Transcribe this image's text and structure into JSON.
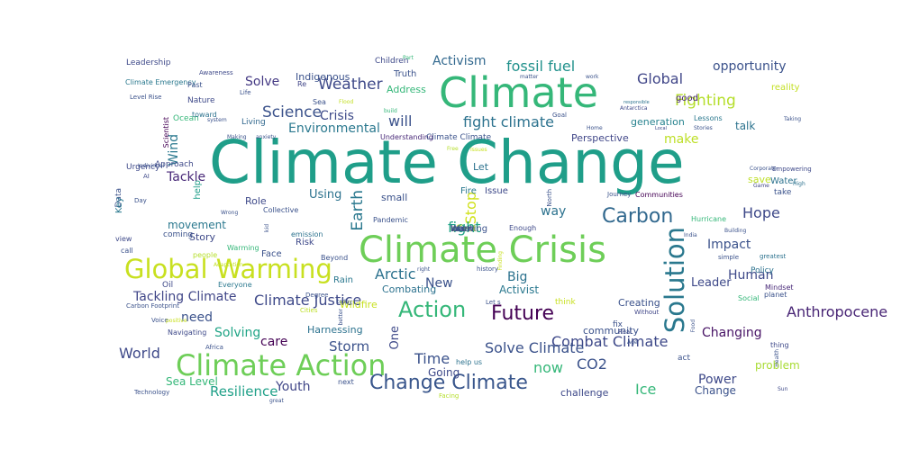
{
  "wordcloud": {
    "words": [
      {
        "text": "Climate Change",
        "color": "#1f9e89",
        "vertical": false
      },
      {
        "text": "Climate Crisis",
        "color": "#6ece58",
        "vertical": false
      },
      {
        "text": "Climate",
        "color": "#35b779",
        "vertical": false
      },
      {
        "text": "Global Warming",
        "color": "#c8e020",
        "vertical": false
      },
      {
        "text": "Climate Action",
        "color": "#6ece58",
        "vertical": false
      },
      {
        "text": "Change Climate",
        "color": "#39568c",
        "vertical": false
      },
      {
        "text": "Solution",
        "color": "#2a788e",
        "vertical": true
      },
      {
        "text": "Carbon",
        "color": "#31688e",
        "vertical": false
      },
      {
        "text": "Action",
        "color": "#35b779",
        "vertical": false
      },
      {
        "text": "Future",
        "color": "#440154",
        "vertical": false
      },
      {
        "text": "Weather",
        "color": "#3e4989",
        "vertical": false
      },
      {
        "text": "Fighting",
        "color": "#b5de2b",
        "vertical": false
      },
      {
        "text": "Science",
        "color": "#3b528b",
        "vertical": false
      },
      {
        "text": "fight climate",
        "color": "#2c728e",
        "vertical": false
      },
      {
        "text": "Global",
        "color": "#404688",
        "vertical": false
      },
      {
        "text": "fossil fuel",
        "color": "#21918c",
        "vertical": false
      },
      {
        "text": "Activism",
        "color": "#31688e",
        "vertical": false
      },
      {
        "text": "will",
        "color": "#3b528b",
        "vertical": false
      },
      {
        "text": "Environmental",
        "color": "#2a788e",
        "vertical": false
      },
      {
        "text": "Crisis",
        "color": "#3e4a89",
        "vertical": false
      },
      {
        "text": "Solve",
        "color": "#443983",
        "vertical": false
      },
      {
        "text": "opportunity",
        "color": "#3b528b",
        "vertical": false
      },
      {
        "text": "reality",
        "color": "#c2df23",
        "vertical": false
      },
      {
        "text": "good",
        "color": "#482475",
        "vertical": false
      },
      {
        "text": "talk",
        "color": "#2c728e",
        "vertical": false
      },
      {
        "text": "make",
        "color": "#bddf26",
        "vertical": false
      },
      {
        "text": "Perspective",
        "color": "#404688",
        "vertical": false
      },
      {
        "text": "generation",
        "color": "#26828e",
        "vertical": false
      },
      {
        "text": "Wind",
        "color": "#2a788e",
        "vertical": true
      },
      {
        "text": "Tackle",
        "color": "#482878",
        "vertical": false
      },
      {
        "text": "help",
        "color": "#1f9e89",
        "vertical": true
      },
      {
        "text": "Earth",
        "color": "#2a788e",
        "vertical": true
      },
      {
        "text": "Stop",
        "color": "#d0e11c",
        "vertical": true
      },
      {
        "text": "way",
        "color": "#2c728e",
        "vertical": false
      },
      {
        "text": "Hope",
        "color": "#3e4989",
        "vertical": false
      },
      {
        "text": "fight",
        "color": "#20a486",
        "vertical": false
      },
      {
        "text": "Impact",
        "color": "#3b528b",
        "vertical": false
      },
      {
        "text": "Human",
        "color": "#3e4989",
        "vertical": false
      },
      {
        "text": "Leader",
        "color": "#3e4989",
        "vertical": false
      },
      {
        "text": "Big",
        "color": "#2c728e",
        "vertical": false
      },
      {
        "text": "Arctic",
        "color": "#2c728e",
        "vertical": false
      },
      {
        "text": "New",
        "color": "#3b528b",
        "vertical": false
      },
      {
        "text": "Activist",
        "color": "#2a788e",
        "vertical": false
      },
      {
        "text": "Tackling Climate",
        "color": "#404688",
        "vertical": false
      },
      {
        "text": "Climate Justice",
        "color": "#3e4989",
        "vertical": false
      },
      {
        "text": "need",
        "color": "#3b528b",
        "vertical": false
      },
      {
        "text": "Anthropocene",
        "color": "#482575",
        "vertical": false
      },
      {
        "text": "One",
        "color": "#3e4989",
        "vertical": true
      },
      {
        "text": "Combat Climate",
        "color": "#3e4989",
        "vertical": false
      },
      {
        "text": "Changing",
        "color": "#471365",
        "vertical": false
      },
      {
        "text": "Solving",
        "color": "#20a486",
        "vertical": false
      },
      {
        "text": "care",
        "color": "#440154",
        "vertical": false
      },
      {
        "text": "Storm",
        "color": "#3b528b",
        "vertical": false
      },
      {
        "text": "Solve Climate",
        "color": "#3b528b",
        "vertical": false
      },
      {
        "text": "World",
        "color": "#3e4989",
        "vertical": false
      },
      {
        "text": "Time",
        "color": "#3b528b",
        "vertical": false
      },
      {
        "text": "CO2",
        "color": "#3b528b",
        "vertical": false
      },
      {
        "text": "now",
        "color": "#35b779",
        "vertical": false
      },
      {
        "text": "Ice",
        "color": "#35b779",
        "vertical": false
      },
      {
        "text": "Power",
        "color": "#3e4989",
        "vertical": false
      },
      {
        "text": "Resilience",
        "color": "#1fa088",
        "vertical": false
      },
      {
        "text": "Youth",
        "color": "#404688",
        "vertical": false
      },
      {
        "text": "problem",
        "color": "#a8db34",
        "vertical": false
      },
      {
        "text": "Change",
        "color": "#3b528b",
        "vertical": false
      },
      {
        "text": "challenge",
        "color": "#3e4989",
        "vertical": false
      },
      {
        "text": "Sea Level",
        "color": "#35b779",
        "vertical": false
      },
      {
        "text": "Going",
        "color": "#3e4989",
        "vertical": false
      },
      {
        "text": "Using",
        "color": "#2c728e",
        "vertical": false
      },
      {
        "text": "Role",
        "color": "#3e4989",
        "vertical": false
      },
      {
        "text": "movement",
        "color": "#2a788e",
        "vertical": false
      },
      {
        "text": "Story",
        "color": "#3e4989",
        "vertical": false
      },
      {
        "text": "small",
        "color": "#3b528b",
        "vertical": false
      },
      {
        "text": "save",
        "color": "#bddf26",
        "vertical": false
      },
      {
        "text": "Water",
        "color": "#2c728e",
        "vertical": false
      },
      {
        "text": "take",
        "color": "#3b528b",
        "vertical": false
      },
      {
        "text": "Issue",
        "color": "#3e4989",
        "vertical": false
      },
      {
        "text": "Fire",
        "color": "#2a788e",
        "vertical": false
      },
      {
        "text": "Let",
        "color": "#2c728e",
        "vertical": false
      },
      {
        "text": "Indigenous",
        "color": "#3b528b",
        "vertical": false
      },
      {
        "text": "Address",
        "color": "#35b779",
        "vertical": false
      },
      {
        "text": "Truth",
        "color": "#3b528b",
        "vertical": false
      },
      {
        "text": "Children",
        "color": "#3e4989",
        "vertical": false
      },
      {
        "text": "Re",
        "color": "#404688",
        "vertical": false
      },
      {
        "text": "Sea",
        "color": "#3b528b",
        "vertical": false
      },
      {
        "text": "Flood",
        "color": "#c2df23",
        "vertical": false
      },
      {
        "text": "Leadership",
        "color": "#3e4989",
        "vertical": false
      },
      {
        "text": "Climate Emergency",
        "color": "#2a788e",
        "vertical": false
      },
      {
        "text": "Past",
        "color": "#3b528b",
        "vertical": false
      },
      {
        "text": "Nature",
        "color": "#3e4989",
        "vertical": false
      },
      {
        "text": "Ocean",
        "color": "#35b779",
        "vertical": false
      },
      {
        "text": "Living",
        "color": "#31688e",
        "vertical": false
      },
      {
        "text": "toward",
        "color": "#2c728e",
        "vertical": false
      },
      {
        "text": "Understanding",
        "color": "#482878",
        "vertical": false
      },
      {
        "text": "Climate Climate",
        "color": "#3b528b",
        "vertical": false
      },
      {
        "text": "Approach",
        "color": "#3e4989",
        "vertical": false
      },
      {
        "text": "Lessons",
        "color": "#2a788e",
        "vertical": false
      },
      {
        "text": "Stories",
        "color": "#3b528b",
        "vertical": false
      },
      {
        "text": "Empowering",
        "color": "#3e4989",
        "vertical": false
      },
      {
        "text": "Corporate",
        "color": "#3b528b",
        "vertical": false
      },
      {
        "text": "Game",
        "color": "#404688",
        "vertical": false
      },
      {
        "text": "work",
        "color": "#3b528b",
        "vertical": false
      },
      {
        "text": "Antarctica",
        "color": "#3e4989",
        "vertical": false
      },
      {
        "text": "Urgency",
        "color": "#3e4989",
        "vertical": false
      },
      {
        "text": "Scientist",
        "color": "#440154",
        "vertical": true
      },
      {
        "text": "Data",
        "color": "#3b528b",
        "vertical": true
      },
      {
        "text": "Key",
        "color": "#2a788e",
        "vertical": true
      },
      {
        "text": "Day",
        "color": "#3b528b",
        "vertical": false
      },
      {
        "text": "AI",
        "color": "#3e4989",
        "vertical": false
      },
      {
        "text": "Individual",
        "color": "#3b528b",
        "vertical": false
      },
      {
        "text": "view",
        "color": "#3e4989",
        "vertical": false
      },
      {
        "text": "call",
        "color": "#3b528b",
        "vertical": false
      },
      {
        "text": "coming",
        "color": "#3b528b",
        "vertical": false
      },
      {
        "text": "Warming",
        "color": "#35b779",
        "vertical": false
      },
      {
        "text": "Face",
        "color": "#3b528b",
        "vertical": false
      },
      {
        "text": "Risk",
        "color": "#3e4989",
        "vertical": false
      },
      {
        "text": "Beyond",
        "color": "#3b528b",
        "vertical": false
      },
      {
        "text": "people",
        "color": "#b5de2b",
        "vertical": false
      },
      {
        "text": "Oil",
        "color": "#3e4989",
        "vertical": false
      },
      {
        "text": "Everyone",
        "color": "#2a788e",
        "vertical": false
      },
      {
        "text": "Combating",
        "color": "#2c728e",
        "vertical": false
      },
      {
        "text": "Rain",
        "color": "#2a788e",
        "vertical": false
      },
      {
        "text": "Wildfire",
        "color": "#c8e020",
        "vertical": false
      },
      {
        "text": "Degree",
        "color": "#3b528b",
        "vertical": false
      },
      {
        "text": "Cities",
        "color": "#bddf26",
        "vertical": false
      },
      {
        "text": "Let s",
        "color": "#3b528b",
        "vertical": false
      },
      {
        "text": "Carbon Footprint",
        "color": "#3b528b",
        "vertical": false
      },
      {
        "text": "Voice",
        "color": "#3b528b",
        "vertical": false
      },
      {
        "text": "Navigating",
        "color": "#3e4989",
        "vertical": false
      },
      {
        "text": "Africa",
        "color": "#3b528b",
        "vertical": false
      },
      {
        "text": "Harnessing",
        "color": "#2c728e",
        "vertical": false
      },
      {
        "text": "community",
        "color": "#3b528b",
        "vertical": false
      },
      {
        "text": "fix",
        "color": "#3b528b",
        "vertical": false
      },
      {
        "text": "Real",
        "color": "#3e4989",
        "vertical": false
      },
      {
        "text": "Creating",
        "color": "#3b528b",
        "vertical": false
      },
      {
        "text": "Without",
        "color": "#404688",
        "vertical": false
      },
      {
        "text": "act",
        "color": "#3b528b",
        "vertical": false
      },
      {
        "text": "Social",
        "color": "#35b779",
        "vertical": false
      },
      {
        "text": "planet",
        "color": "#3b528b",
        "vertical": false
      },
      {
        "text": "thing",
        "color": "#3e4989",
        "vertical": false
      },
      {
        "text": "Mindset",
        "color": "#482878",
        "vertical": false
      },
      {
        "text": "Policy",
        "color": "#2c728e",
        "vertical": false
      },
      {
        "text": "simple",
        "color": "#3b528b",
        "vertical": false
      },
      {
        "text": "greatest",
        "color": "#2c728e",
        "vertical": false
      },
      {
        "text": "Building",
        "color": "#3b528b",
        "vertical": false
      },
      {
        "text": "Hurricane",
        "color": "#35b779",
        "vertical": false
      },
      {
        "text": "Communities",
        "color": "#440154",
        "vertical": false
      },
      {
        "text": "Journey",
        "color": "#3b528b",
        "vertical": false
      },
      {
        "text": "Enough",
        "color": "#3e4989",
        "vertical": false
      },
      {
        "text": "history",
        "color": "#3b528b",
        "vertical": false
      },
      {
        "text": "think",
        "color": "#c8e020",
        "vertical": false
      },
      {
        "text": "help us",
        "color": "#2c728e",
        "vertical": false
      },
      {
        "text": "next",
        "color": "#3b528b",
        "vertical": false
      },
      {
        "text": "Technology",
        "color": "#3b528b",
        "vertical": false
      },
      {
        "text": "Pandemic",
        "color": "#3b528b",
        "vertical": false
      },
      {
        "text": "emission",
        "color": "#2c728e",
        "vertical": false
      },
      {
        "text": "Collective",
        "color": "#3b528b",
        "vertical": false
      },
      {
        "text": "Life",
        "color": "#3b528b",
        "vertical": false
      },
      {
        "text": "Level Rise",
        "color": "#3b528b",
        "vertical": false
      },
      {
        "text": "Awareness",
        "color": "#3e4989",
        "vertical": false
      },
      {
        "text": "system",
        "color": "#3b528b",
        "vertical": false
      },
      {
        "text": "Making",
        "color": "#3b528b",
        "vertical": false
      },
      {
        "text": "anxiety",
        "color": "#3b528b",
        "vertical": false
      },
      {
        "text": "matter",
        "color": "#3b528b",
        "vertical": false
      },
      {
        "text": "Part",
        "color": "#35b779",
        "vertical": false
      },
      {
        "text": "build",
        "color": "#35b779",
        "vertical": false
      },
      {
        "text": "Home",
        "color": "#3b528b",
        "vertical": false
      },
      {
        "text": "responsible",
        "color": "#2c728e",
        "vertical": false
      },
      {
        "text": "Issues",
        "color": "#c8e020",
        "vertical": false
      },
      {
        "text": "Free",
        "color": "#b5de2b",
        "vertical": false
      },
      {
        "text": "Goal",
        "color": "#3b528b",
        "vertical": false
      },
      {
        "text": "Local",
        "color": "#3e4989",
        "vertical": false
      },
      {
        "text": "High",
        "color": "#2c728e",
        "vertical": false
      },
      {
        "text": "Taking",
        "color": "#3b528b",
        "vertical": false
      },
      {
        "text": "Food",
        "color": "#3b528b",
        "vertical": true
      },
      {
        "text": "India",
        "color": "#3b528b",
        "vertical": false
      },
      {
        "text": "Health",
        "color": "#3b528b",
        "vertical": true
      },
      {
        "text": "Sun",
        "color": "#3e4989",
        "vertical": false
      },
      {
        "text": "Facing",
        "color": "#b5de2b",
        "vertical": false
      },
      {
        "text": "better",
        "color": "#3b528b",
        "vertical": true
      },
      {
        "text": "today",
        "color": "#3b528b",
        "vertical": false
      },
      {
        "text": "kid",
        "color": "#3b528b",
        "vertical": true
      },
      {
        "text": "Wrong",
        "color": "#3b528b",
        "vertical": false
      },
      {
        "text": "great",
        "color": "#3b528b",
        "vertical": false
      },
      {
        "text": "Adaptation",
        "color": "#c2df23",
        "vertical": false
      },
      {
        "text": "positive",
        "color": "#c8e020",
        "vertical": false
      },
      {
        "text": "North",
        "color": "#3b528b",
        "vertical": true
      },
      {
        "text": "Finding",
        "color": "#c8e020",
        "vertical": true
      },
      {
        "text": "right",
        "color": "#3b528b",
        "vertical": false
      },
      {
        "text": "Age",
        "color": "#3b528b",
        "vertical": false
      },
      {
        "text": "win",
        "color": "#3b528b",
        "vertical": false
      },
      {
        "text": "effect",
        "color": "#c8e020",
        "vertical": false
      },
      {
        "text": "must",
        "color": "#3b528b",
        "vertical": false
      },
      {
        "text": "Warning",
        "color": "#3b528b",
        "vertical": false
      },
      {
        "text": "know",
        "color": "#3b528b",
        "vertical": false
      }
    ]
  }
}
